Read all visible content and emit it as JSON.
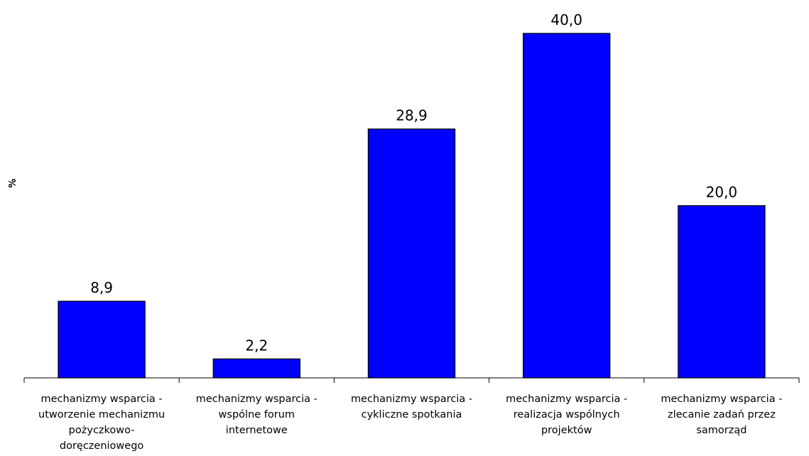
{
  "chart_data": {
    "type": "bar",
    "title": "",
    "xlabel": "",
    "ylabel": "%",
    "ylim": [
      0,
      40
    ],
    "grid": false,
    "legend": "none",
    "bar_color": "#0000ff",
    "categories": [
      [
        "mechanizmy wsparcia -",
        "utworzenie mechanizmu",
        "pożyczkowo-",
        "doręczeniowego"
      ],
      [
        "mechanizmy wsparcia -",
        "wspólne forum",
        "internetowe"
      ],
      [
        "mechanizmy wsparcia -",
        "cykliczne spotkania"
      ],
      [
        "mechanizmy wsparcia -",
        "realizacja wspólnych",
        "projektów"
      ],
      [
        "mechanizmy wsparcia -",
        "zlecanie zadań przez",
        "samorząd"
      ]
    ],
    "values": [
      8.9,
      2.2,
      28.9,
      40.0,
      20.0
    ],
    "value_labels": [
      "8,9",
      "2,2",
      "28,9",
      "40,0",
      "20,0"
    ]
  }
}
